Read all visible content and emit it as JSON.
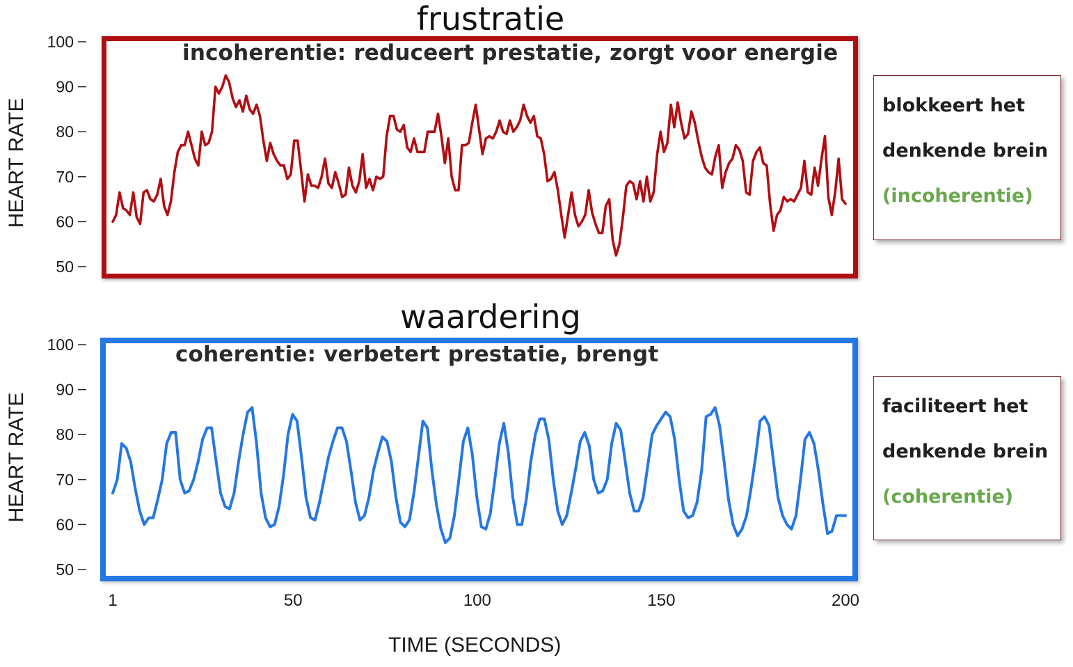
{
  "chart_data": [
    {
      "type": "line",
      "title": "frustratie",
      "subtitle": "incoherentie: reduceert prestatie, zorgt voor energie",
      "ylabel": "HEART RATE",
      "xlabel": "TIME (SECONDS)",
      "ylim": [
        50,
        100
      ],
      "xlim": [
        1,
        200
      ],
      "yticks": [
        50,
        60,
        70,
        80,
        90,
        100
      ],
      "xticks": [
        1,
        50,
        100,
        150,
        200
      ],
      "line_color": "#b10e13",
      "series": [
        {
          "values": [
            60,
            61.5,
            66.5,
            63,
            62.5,
            61.5,
            66.5,
            61,
            59.5,
            66.5,
            67,
            65,
            64.5,
            66,
            69.5,
            63.5,
            61.5,
            64.5,
            71,
            75.5,
            77,
            77,
            80,
            77,
            74,
            72.5,
            80,
            77,
            77.5,
            80,
            90,
            88.5,
            90,
            92.5,
            91,
            87.5,
            85.5,
            87,
            84.5,
            88,
            85,
            84,
            86,
            83.5,
            78,
            73.5,
            77.5,
            75,
            73.5,
            72.5,
            72.5,
            69.5,
            70.5,
            78,
            78,
            71.5,
            64.5,
            70.5,
            68,
            68,
            67.5,
            70,
            74,
            68.5,
            67.5,
            71,
            68.5,
            65.5,
            66,
            72,
            68,
            66.5,
            69,
            75,
            67.5,
            69.5,
            67,
            70,
            69.5,
            70,
            79,
            83.5,
            83.5,
            80.5,
            80,
            81.5,
            76.5,
            75.5,
            78.5,
            75.5,
            75.5,
            75.5,
            80,
            80,
            80,
            84,
            79,
            73,
            78.5,
            70,
            67,
            67,
            77,
            77,
            77.5,
            82,
            86,
            80.5,
            75,
            78.5,
            79,
            78.5,
            80,
            82.5,
            80,
            79.5,
            82.5,
            80,
            81,
            82.5,
            86,
            83.5,
            82,
            83.5,
            79,
            78.5,
            75,
            69,
            69.5,
            71,
            67,
            61.5,
            56.5,
            61.5,
            66.5,
            61.5,
            59,
            60,
            61.5,
            67,
            62,
            59.5,
            57.5,
            57.5,
            63.5,
            65,
            56,
            52.5,
            55,
            61,
            68,
            69,
            68.5,
            65,
            69,
            64.5,
            70,
            64.5,
            66.5,
            75,
            80,
            75.5,
            77.5,
            86,
            81,
            86.5,
            82,
            78.5,
            79.5,
            84.5,
            82,
            78,
            74.5,
            72,
            71,
            70.5,
            74.5,
            77,
            67.5,
            71,
            73,
            74,
            77,
            76,
            73.5,
            66.5,
            66,
            73.5,
            75.5,
            76.5,
            73,
            72.5,
            64,
            58,
            61.5,
            62.5,
            65.5,
            64.5,
            65,
            64.5,
            66,
            67.5,
            73.5,
            66.5,
            66,
            72,
            68,
            74,
            79,
            65.5,
            61.5,
            66.5,
            74,
            65,
            64
          ]
        }
      ]
    },
    {
      "type": "line",
      "title": "waardering",
      "subtitle": "coherentie: verbetert prestatie, brengt",
      "ylabel": "HEART RATE",
      "xlabel": "TIME (SECONDS)",
      "ylim": [
        50,
        100
      ],
      "xlim": [
        1,
        200
      ],
      "yticks": [
        50,
        60,
        70,
        80,
        90,
        100
      ],
      "xticks": [
        1,
        50,
        100,
        150,
        200
      ],
      "line_color": "#2577e3",
      "series": [
        {
          "values": [
            67,
            70,
            78,
            77,
            74,
            68,
            63,
            60,
            61.5,
            61.5,
            65.5,
            70,
            78,
            80.5,
            80.5,
            70,
            67,
            67.5,
            70,
            74,
            79,
            81.5,
            81.5,
            74,
            67,
            64,
            63.5,
            67,
            74,
            80,
            85,
            86,
            78,
            67,
            61.5,
            59.5,
            60,
            64,
            71,
            80,
            84.5,
            83,
            75,
            66,
            61.5,
            61,
            65,
            70,
            75,
            78.5,
            81.5,
            81.5,
            78.5,
            72,
            65,
            61,
            62,
            66,
            72,
            76,
            79.5,
            78.5,
            74,
            66,
            60.5,
            59.5,
            61,
            67,
            75,
            83,
            81.5,
            72,
            64.5,
            59,
            56,
            57,
            62,
            70,
            78.5,
            81.5,
            75.5,
            66,
            59.5,
            59,
            62.5,
            70,
            78,
            82.5,
            76,
            66,
            60,
            60,
            65.5,
            74,
            80,
            83.5,
            83.5,
            79,
            70,
            63,
            60,
            62,
            67,
            72.5,
            78.5,
            80.5,
            77.5,
            70,
            67,
            67.5,
            70,
            78,
            82.5,
            81,
            74,
            67,
            63,
            63,
            66,
            73,
            80,
            82,
            83.5,
            85,
            84,
            79,
            70,
            63,
            61.5,
            62,
            65,
            72,
            84,
            84.5,
            86,
            82,
            74,
            65.5,
            60,
            57.5,
            59,
            62,
            68,
            75,
            83,
            84,
            82,
            74,
            66,
            62,
            60,
            59,
            62,
            70,
            79,
            80.5,
            78,
            72,
            64.5,
            58,
            58.5,
            62,
            62,
            62
          ]
        }
      ]
    }
  ],
  "annotations": {
    "top_box": {
      "line1": "blokkeert het",
      "line2": "denkende brein",
      "line3": "(incoherentie)"
    },
    "bottom_box": {
      "line1": "faciliteert het",
      "line2": "denkende brein",
      "line3": "(coherentie)"
    },
    "green_color": "#6aa84f"
  }
}
